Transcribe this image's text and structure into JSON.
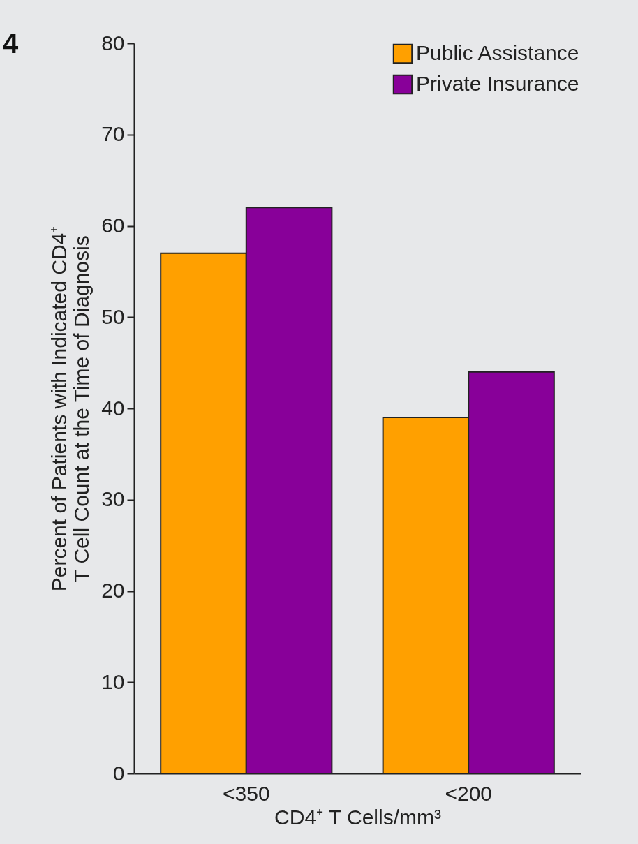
{
  "chart_data": {
    "type": "bar",
    "xlabel": "CD4⁺ T Cells/mm³",
    "ylabel": "Percent of Patients with Indicated CD4⁺\nT Cell Count at the Time of Diagnosis",
    "annotations": [
      "4"
    ],
    "categories": [
      "<350",
      "<200"
    ],
    "series": [
      {
        "name": "Public Assistance",
        "color": "#ffa000",
        "values": [
          57,
          39
        ]
      },
      {
        "name": "Private Insurance",
        "color": "#880099",
        "values": [
          62,
          44
        ]
      }
    ],
    "ylim": [
      0,
      80
    ],
    "yticks": [
      0,
      10,
      20,
      30,
      40,
      50,
      60,
      70,
      80
    ],
    "grid": false,
    "legend": "top right"
  }
}
